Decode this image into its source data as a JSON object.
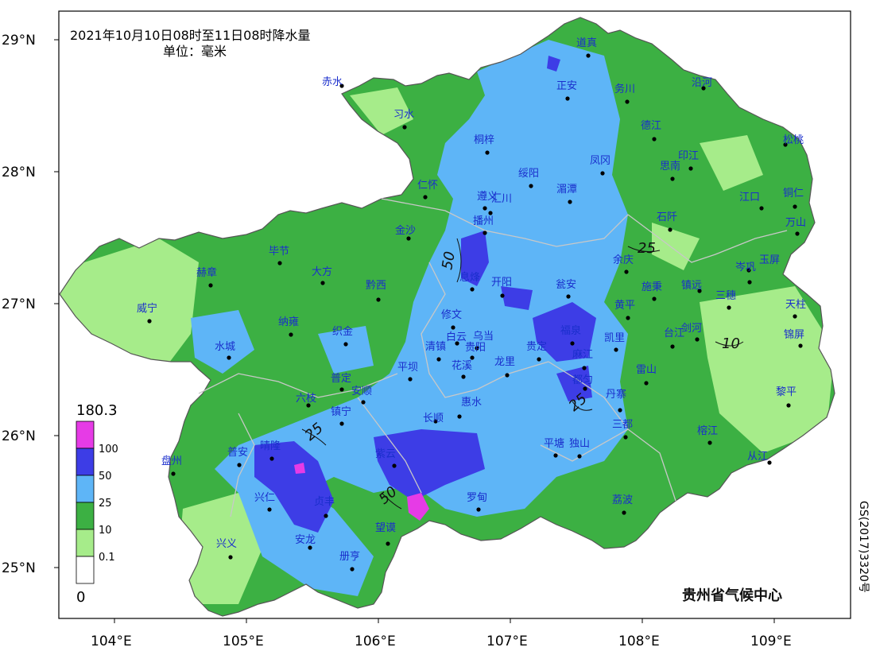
{
  "title": {
    "line1": "2021年10月10日08时至11日08时降水量",
    "line2": "单位：毫米"
  },
  "lat_labels": [
    "29°N",
    "28°N",
    "27°N",
    "26°N",
    "25°N"
  ],
  "lon_labels": [
    "104°E",
    "105°E",
    "106°E",
    "107°E",
    "108°E",
    "109°E"
  ],
  "legend": {
    "max_value": "180.3",
    "min_value": "0",
    "classes": [
      {
        "label": "100",
        "color": "#e63be6"
      },
      {
        "label": "50",
        "color": "#3d3de6"
      },
      {
        "label": "25",
        "color": "#5eb5f7"
      },
      {
        "label": "10",
        "color": "#3cb043"
      },
      {
        "label": "0.1",
        "color": "#a6ec8a"
      },
      {
        "label": "",
        "color": "#ffffff"
      }
    ]
  },
  "contour_labels": [
    "50",
    "25",
    "10",
    "25",
    "25",
    "50"
  ],
  "cities": [
    "道真",
    "正安",
    "务川",
    "沿河",
    "赤水",
    "习水",
    "德江",
    "松桃",
    "桐梓",
    "绥阳",
    "凤冈",
    "思南",
    "印江",
    "仁怀",
    "湄潭",
    "遵义",
    "汇川",
    "江口",
    "铜仁",
    "播州",
    "石阡",
    "万山",
    "金沙",
    "余庆",
    "岑巩",
    "玉屏",
    "毕节",
    "赫章",
    "大方",
    "息烽",
    "开阳",
    "瓮安",
    "黔西",
    "施秉",
    "镇远",
    "三穗",
    "天柱",
    "威宁",
    "修文",
    "黄平",
    "福泉",
    "剑河",
    "锦屏",
    "台江",
    "纳雍",
    "织金",
    "白云",
    "乌当",
    "清镇",
    "贵阳",
    "贵定",
    "凯里",
    "麻江",
    "水城",
    "雷山",
    "平坝",
    "花溪",
    "龙里",
    "普定",
    "安顺",
    "六枝",
    "都匀",
    "丹寨",
    "黎平",
    "惠水",
    "长顺",
    "镇宁",
    "三都",
    "榕江",
    "盘州",
    "普安",
    "晴隆",
    "紫云",
    "平塘",
    "独山",
    "从江",
    "兴仁",
    "贞丰",
    "罗甸",
    "荔波",
    "望谟",
    "兴义",
    "安龙",
    "册亨"
  ],
  "credit": "贵州省气候中心",
  "gs_code": "GS(2017)3320号"
}
